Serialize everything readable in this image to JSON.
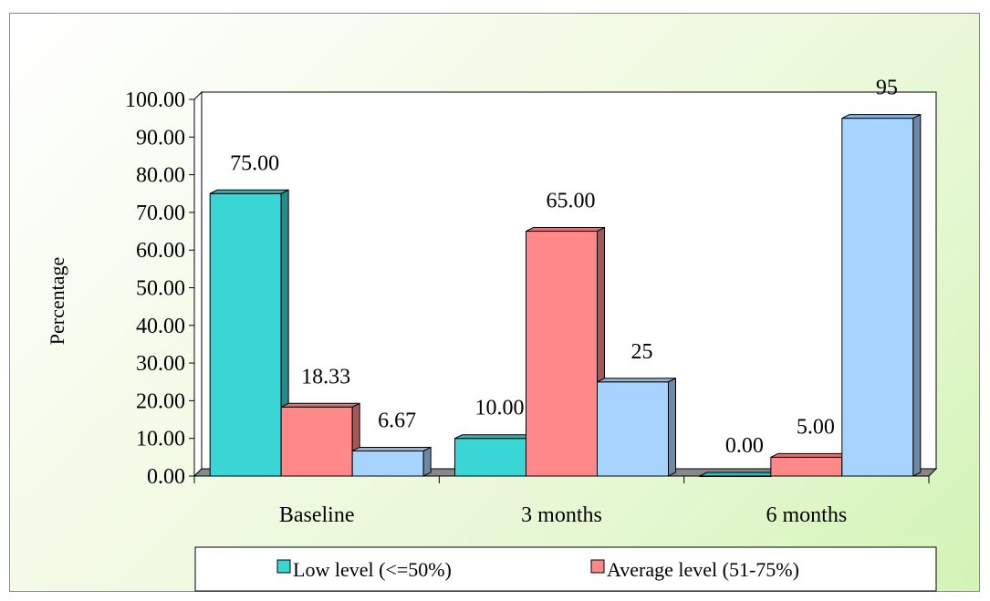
{
  "chart_data": {
    "type": "bar",
    "title": "",
    "xlabel": "",
    "ylabel": "Percentage",
    "ylim": [
      0,
      100
    ],
    "y_ticks": [
      "0.00",
      "10.00",
      "20.00",
      "30.00",
      "40.00",
      "50.00",
      "60.00",
      "70.00",
      "80.00",
      "90.00",
      "100.00"
    ],
    "categories": [
      "Baseline",
      "3 months",
      "6 months"
    ],
    "series": [
      {
        "name": "Low level (<=50%)",
        "values": [
          75.0,
          10.0,
          0.0
        ],
        "labels": [
          "75.00",
          "10.00",
          "0.00"
        ],
        "color": "#3ad6d6"
      },
      {
        "name": "Average level (51-75%)",
        "values": [
          18.33,
          65.0,
          5.0
        ],
        "labels": [
          "18.33",
          "65.00",
          "5.00"
        ],
        "color": "#ff8888"
      },
      {
        "values": [
          6.67,
          25,
          95
        ],
        "labels": [
          "6.67",
          "25",
          "95"
        ],
        "color": "#a6d4ff"
      }
    ],
    "legend_position": "bottom",
    "grid": false,
    "style": "3d-bar"
  }
}
